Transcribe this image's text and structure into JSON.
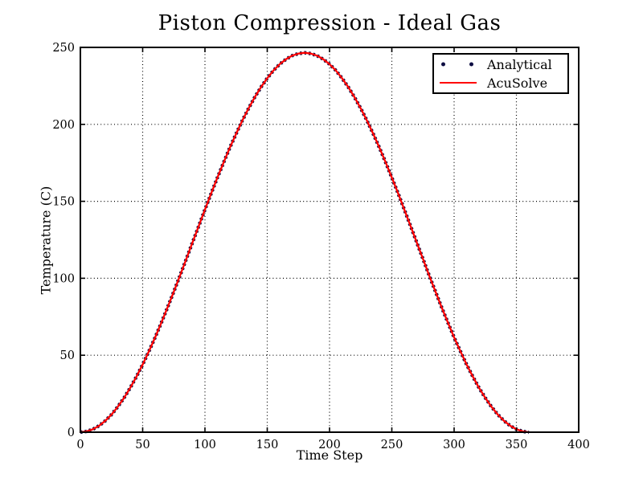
{
  "chart_data": {
    "type": "line",
    "title": "Piston Compression - Ideal Gas",
    "xlabel": "Time Step",
    "ylabel": "Temperature (C)",
    "xlim": [
      0,
      400
    ],
    "ylim": [
      0,
      250
    ],
    "xticks": [
      0,
      50,
      100,
      150,
      200,
      250,
      300,
      350,
      400
    ],
    "yticks": [
      0,
      50,
      100,
      150,
      200,
      250
    ],
    "grid": true,
    "grid_style": "dotted",
    "legend_position": "upper right",
    "axis_color": "#000000",
    "background": "#ffffff",
    "x": [
      0,
      5,
      10,
      15,
      20,
      25,
      30,
      35,
      40,
      45,
      50,
      55,
      60,
      65,
      70,
      75,
      80,
      85,
      90,
      95,
      100,
      105,
      110,
      115,
      120,
      125,
      130,
      135,
      140,
      145,
      150,
      155,
      160,
      165,
      170,
      175,
      180,
      185,
      190,
      195,
      200,
      205,
      210,
      215,
      220,
      225,
      230,
      235,
      240,
      245,
      250,
      255,
      260,
      265,
      270,
      275,
      280,
      285,
      290,
      295,
      300,
      305,
      310,
      315,
      320,
      325,
      330,
      335,
      340,
      345,
      350,
      355,
      360
    ],
    "series": [
      {
        "name": "Analytical",
        "style": "dots",
        "color": "#0d0d42",
        "values": [
          0,
          0.5,
          1.9,
          4.2,
          7.4,
          11.5,
          16.5,
          22.3,
          28.8,
          36.1,
          44.0,
          52.6,
          61.6,
          71.2,
          81.1,
          91.4,
          101.8,
          112.5,
          123.3,
          134.0,
          144.7,
          155.2,
          165.4,
          175.3,
          184.9,
          193.9,
          202.5,
          210.4,
          217.7,
          224.2,
          230.0,
          235.0,
          239.1,
          242.3,
          244.6,
          246.0,
          246.5,
          246.0,
          244.6,
          242.3,
          239.1,
          235.0,
          230.0,
          224.2,
          217.7,
          210.4,
          202.5,
          193.9,
          184.9,
          175.3,
          165.4,
          155.2,
          144.7,
          134.0,
          123.3,
          112.5,
          101.8,
          91.4,
          81.1,
          71.2,
          61.6,
          52.6,
          44.0,
          36.1,
          28.8,
          22.3,
          16.5,
          11.5,
          7.4,
          4.2,
          1.9,
          0.5,
          0
        ]
      },
      {
        "name": "AcuSolve",
        "style": "line",
        "color": "#ff0000",
        "values": [
          0,
          0.5,
          1.9,
          4.2,
          7.4,
          11.5,
          16.5,
          22.3,
          28.8,
          36.1,
          44.0,
          52.6,
          61.6,
          71.2,
          81.1,
          91.4,
          101.8,
          112.5,
          123.3,
          134.0,
          144.7,
          155.2,
          165.4,
          175.3,
          184.9,
          193.9,
          202.5,
          210.4,
          217.7,
          224.2,
          230.0,
          235.0,
          239.1,
          242.3,
          244.6,
          246.0,
          246.5,
          246.0,
          244.6,
          242.3,
          239.1,
          235.0,
          230.0,
          224.2,
          217.7,
          210.4,
          202.5,
          193.9,
          184.9,
          175.3,
          165.4,
          155.2,
          144.7,
          134.0,
          123.3,
          112.5,
          101.8,
          91.4,
          81.1,
          71.2,
          61.6,
          52.6,
          44.0,
          36.1,
          28.8,
          22.3,
          16.5,
          11.5,
          7.4,
          4.2,
          1.9,
          0.5,
          0
        ]
      }
    ]
  }
}
